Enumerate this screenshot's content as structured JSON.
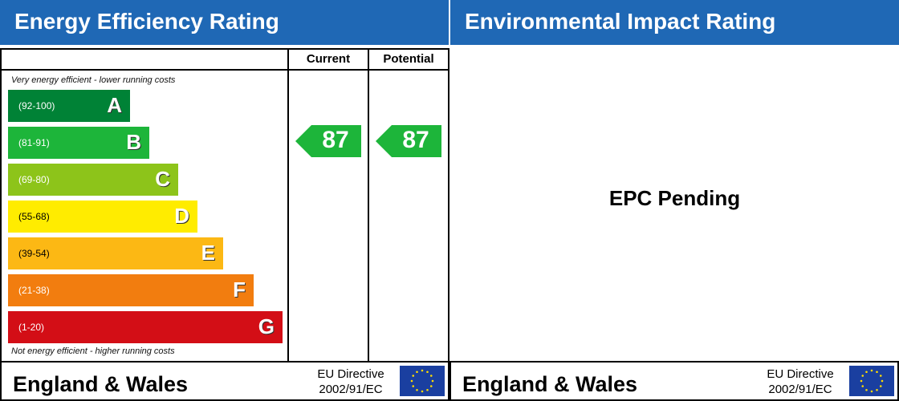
{
  "energy": {
    "title": "Energy Efficiency Rating",
    "col_current": "Current",
    "col_potential": "Potential",
    "top_note": "Very energy efficient - lower running costs",
    "bottom_note": "Not energy efficient - higher running costs",
    "bands": [
      {
        "letter": "A",
        "range": "(92-100)",
        "color": "#008236"
      },
      {
        "letter": "B",
        "range": "(81-91)",
        "color": "#1db53a"
      },
      {
        "letter": "C",
        "range": "(69-80)",
        "color": "#8dc41a"
      },
      {
        "letter": "D",
        "range": "(55-68)",
        "color": "#ffec00"
      },
      {
        "letter": "E",
        "range": "(39-54)",
        "color": "#fcb814"
      },
      {
        "letter": "F",
        "range": "(21-38)",
        "color": "#f27d0f"
      },
      {
        "letter": "G",
        "range": "(1-20)",
        "color": "#d30e16"
      }
    ],
    "current": {
      "value": "87",
      "band": "B",
      "color": "#1db53a"
    },
    "potential": {
      "value": "87",
      "band": "B",
      "color": "#1db53a"
    }
  },
  "environment": {
    "title": "Environmental Impact Rating",
    "status": "EPC Pending"
  },
  "footer": {
    "region": "England & Wales",
    "directive_line1": "EU Directive",
    "directive_line2": "2002/91/EC",
    "flag_icon": "eu-flag-icon"
  }
}
